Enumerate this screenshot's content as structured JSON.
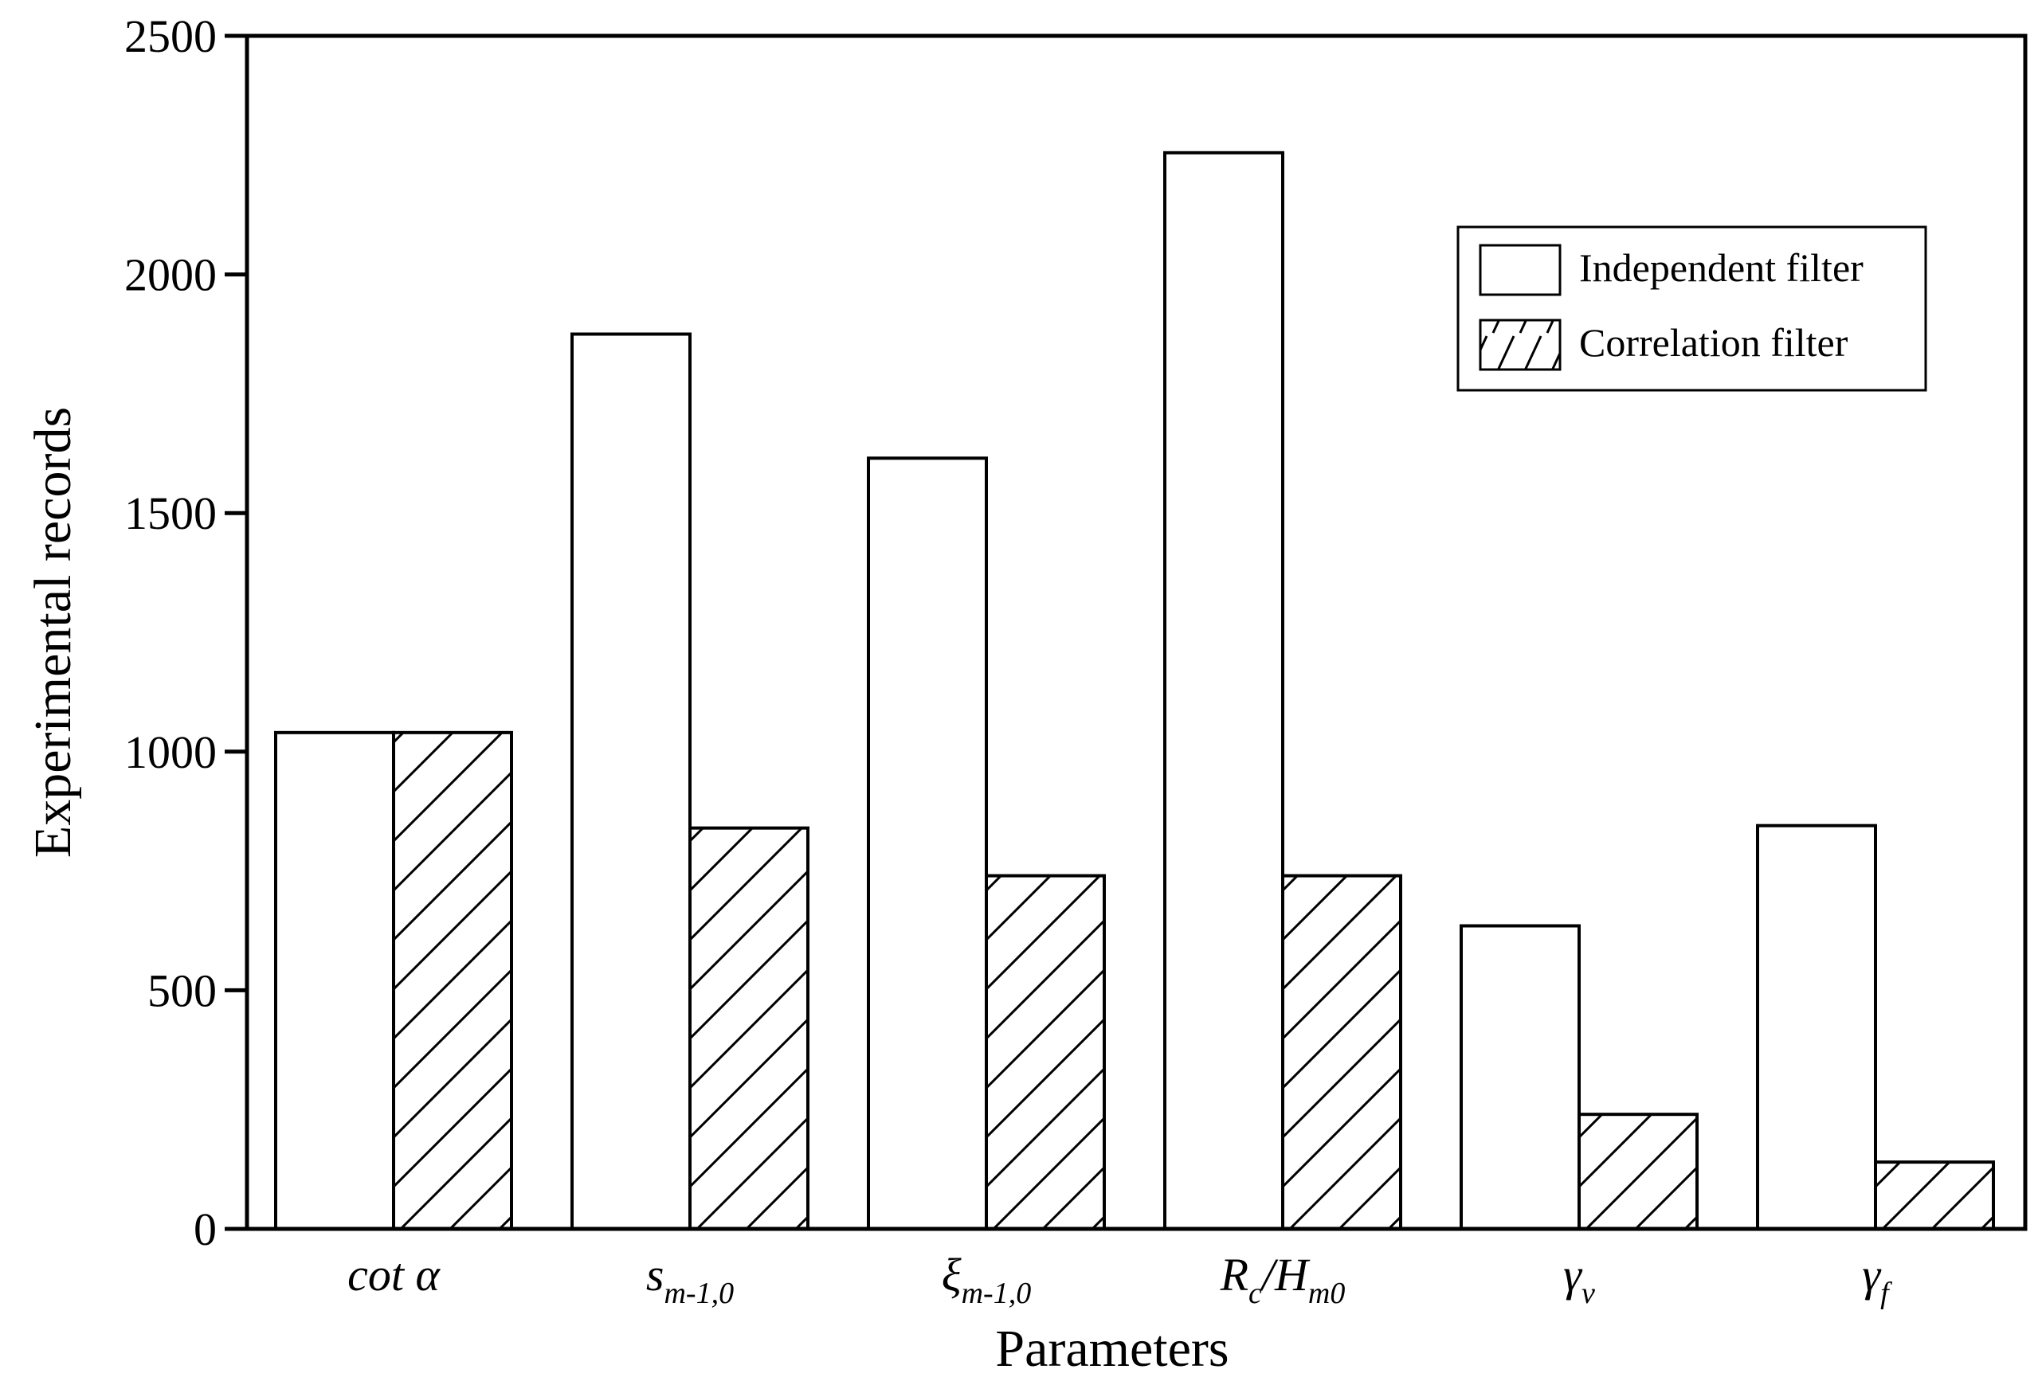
{
  "chart_data": {
    "type": "bar",
    "xlabel": "Parameters",
    "ylabel": "Experimental records",
    "ylim": [
      0,
      2500
    ],
    "yticks": [
      0,
      500,
      1000,
      1500,
      2000,
      2500
    ],
    "grid": false,
    "legend_position": "top-right",
    "categories": [
      {
        "main": "cot α",
        "sub": ""
      },
      {
        "main": "s",
        "sub": "m-1,0"
      },
      {
        "main": "ξ",
        "sub": "m-1,0"
      },
      {
        "main": "R",
        "sub": "c",
        "main2": "/H",
        "sub2": "m0"
      },
      {
        "main": "γ",
        "sub": "v"
      },
      {
        "main": "γ",
        "sub": "f"
      }
    ],
    "series": [
      {
        "name": "Independent filter",
        "fill": "none",
        "values": [
          1040,
          1875,
          1615,
          2255,
          635,
          845
        ]
      },
      {
        "name": "Correlation filter",
        "fill": "hatch",
        "values": [
          1040,
          840,
          740,
          740,
          240,
          140
        ]
      }
    ]
  }
}
